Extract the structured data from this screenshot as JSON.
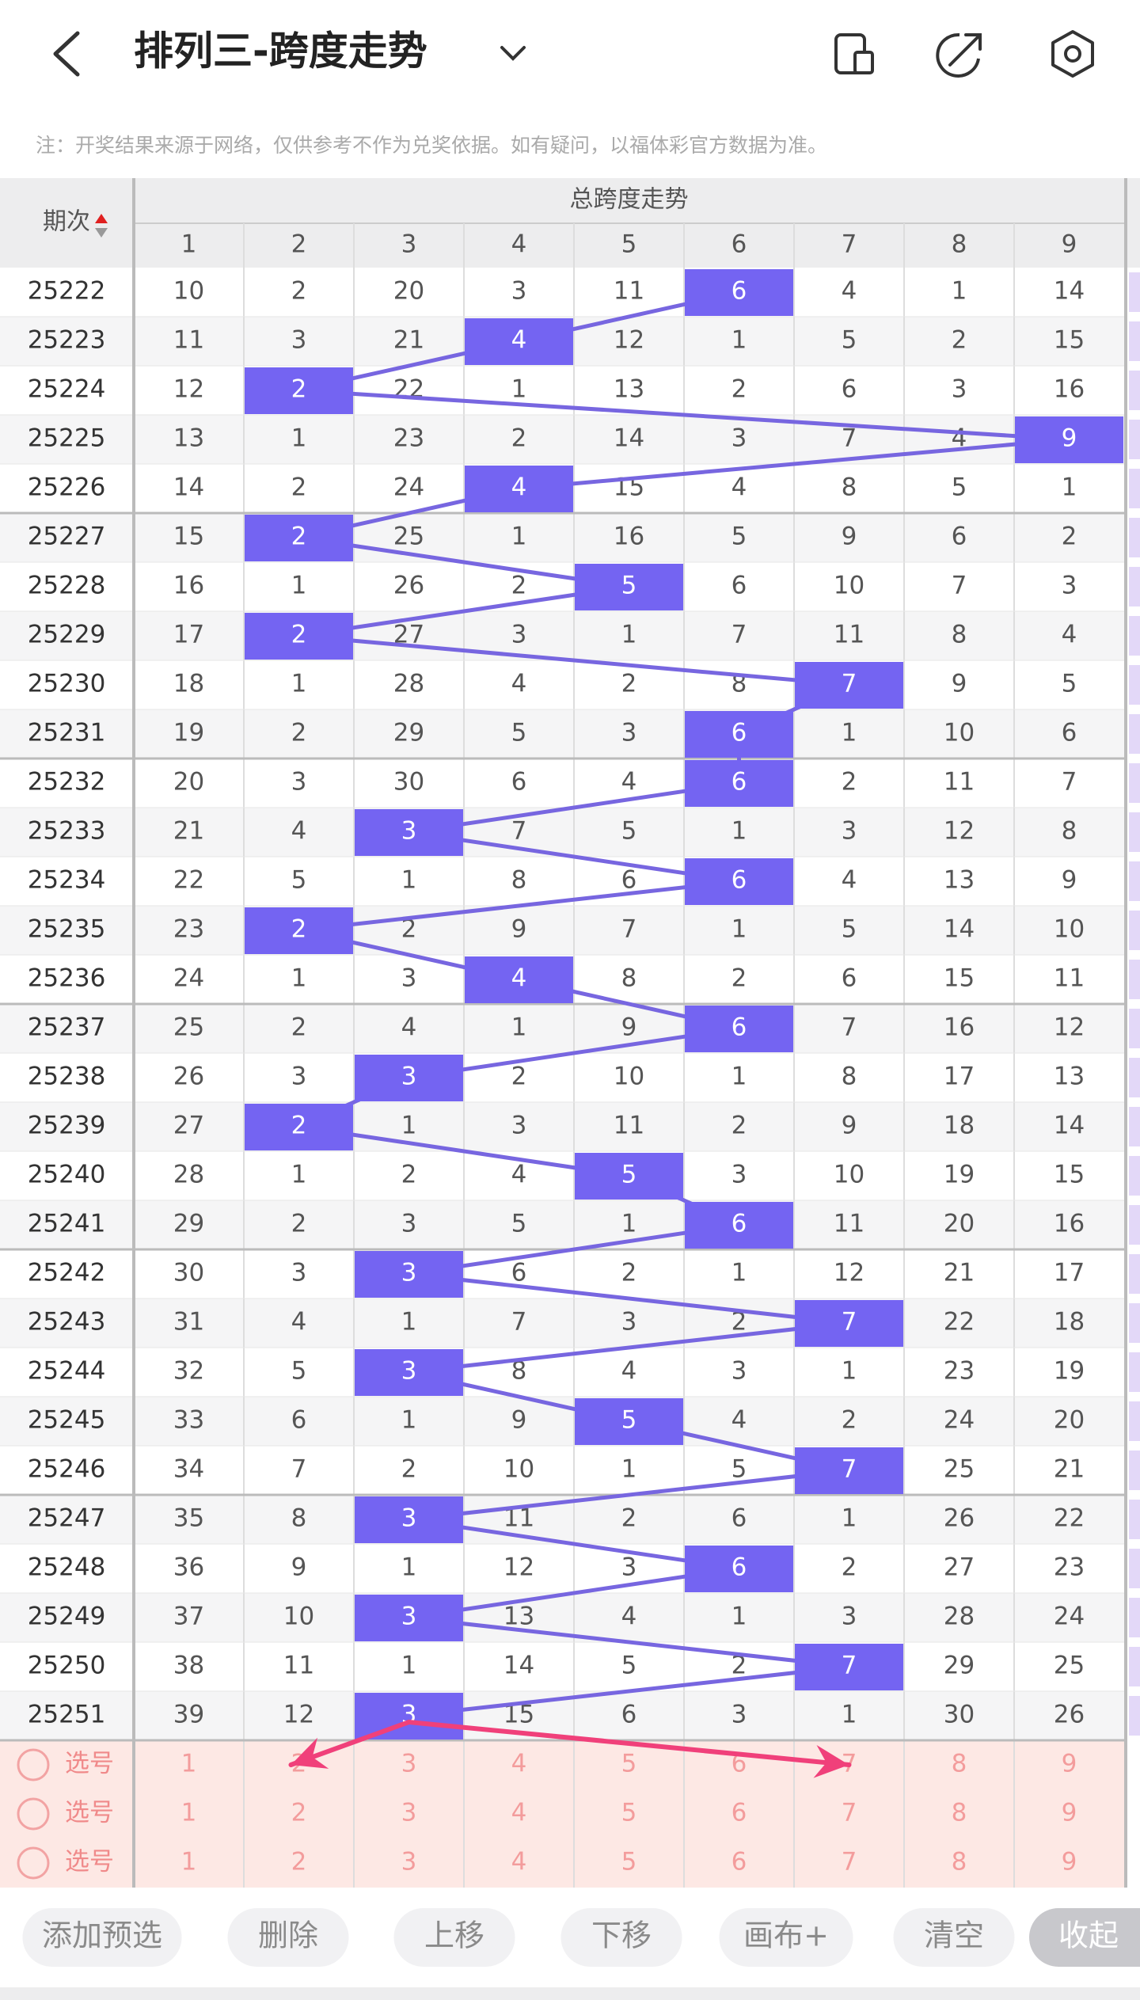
{
  "header": {
    "title": "排列三-跨度走势"
  },
  "notice": "注：开奖结果来源于网络，仅供参考不作为兑奖依据。如有疑问，以福体彩官方数据为准。",
  "table": {
    "period_header": "期次",
    "group_header": "总跨度走势",
    "columns": [
      1,
      2,
      3,
      4,
      5,
      6,
      7,
      8,
      9
    ],
    "rows": [
      {
        "period": "25222",
        "values": [
          10,
          2,
          20,
          3,
          11,
          6,
          4,
          1,
          14
        ],
        "span": 6
      },
      {
        "period": "25223",
        "values": [
          11,
          3,
          21,
          4,
          12,
          1,
          5,
          2,
          15
        ],
        "span": 4
      },
      {
        "period": "25224",
        "values": [
          12,
          2,
          22,
          1,
          13,
          2,
          6,
          3,
          16
        ],
        "span": 2
      },
      {
        "period": "25225",
        "values": [
          13,
          1,
          23,
          2,
          14,
          3,
          7,
          4,
          9
        ],
        "span": 9
      },
      {
        "period": "25226",
        "values": [
          14,
          2,
          24,
          4,
          15,
          4,
          8,
          5,
          1
        ],
        "span": 4
      },
      {
        "period": "25227",
        "values": [
          15,
          2,
          25,
          1,
          16,
          5,
          9,
          6,
          2
        ],
        "span": 2
      },
      {
        "period": "25228",
        "values": [
          16,
          1,
          26,
          2,
          5,
          6,
          10,
          7,
          3
        ],
        "span": 5
      },
      {
        "period": "25229",
        "values": [
          17,
          2,
          27,
          3,
          1,
          7,
          11,
          8,
          4
        ],
        "span": 2
      },
      {
        "period": "25230",
        "values": [
          18,
          1,
          28,
          4,
          2,
          8,
          7,
          9,
          5
        ],
        "span": 7
      },
      {
        "period": "25231",
        "values": [
          19,
          2,
          29,
          5,
          3,
          6,
          1,
          10,
          6
        ],
        "span": 6
      },
      {
        "period": "25232",
        "values": [
          20,
          3,
          30,
          6,
          4,
          6,
          2,
          11,
          7
        ],
        "span": 6
      },
      {
        "period": "25233",
        "values": [
          21,
          4,
          3,
          7,
          5,
          1,
          3,
          12,
          8
        ],
        "span": 3
      },
      {
        "period": "25234",
        "values": [
          22,
          5,
          1,
          8,
          6,
          6,
          4,
          13,
          9
        ],
        "span": 6
      },
      {
        "period": "25235",
        "values": [
          23,
          2,
          2,
          9,
          7,
          1,
          5,
          14,
          10
        ],
        "span": 2
      },
      {
        "period": "25236",
        "values": [
          24,
          1,
          3,
          4,
          8,
          2,
          6,
          15,
          11
        ],
        "span": 4
      },
      {
        "period": "25237",
        "values": [
          25,
          2,
          4,
          1,
          9,
          6,
          7,
          16,
          12
        ],
        "span": 6
      },
      {
        "period": "25238",
        "values": [
          26,
          3,
          3,
          2,
          10,
          1,
          8,
          17,
          13
        ],
        "span": 3
      },
      {
        "period": "25239",
        "values": [
          27,
          2,
          1,
          3,
          11,
          2,
          9,
          18,
          14
        ],
        "span": 2
      },
      {
        "period": "25240",
        "values": [
          28,
          1,
          2,
          4,
          5,
          3,
          10,
          19,
          15
        ],
        "span": 5
      },
      {
        "period": "25241",
        "values": [
          29,
          2,
          3,
          5,
          1,
          6,
          11,
          20,
          16
        ],
        "span": 6
      },
      {
        "period": "25242",
        "values": [
          30,
          3,
          3,
          6,
          2,
          1,
          12,
          21,
          17
        ],
        "span": 3
      },
      {
        "period": "25243",
        "values": [
          31,
          4,
          1,
          7,
          3,
          2,
          7,
          22,
          18
        ],
        "span": 7
      },
      {
        "period": "25244",
        "values": [
          32,
          5,
          3,
          8,
          4,
          3,
          1,
          23,
          19
        ],
        "span": 3
      },
      {
        "period": "25245",
        "values": [
          33,
          6,
          1,
          9,
          5,
          4,
          2,
          24,
          20
        ],
        "span": 5
      },
      {
        "period": "25246",
        "values": [
          34,
          7,
          2,
          10,
          1,
          5,
          7,
          25,
          21
        ],
        "span": 7
      },
      {
        "period": "25247",
        "values": [
          35,
          8,
          3,
          11,
          2,
          6,
          1,
          26,
          22
        ],
        "span": 3
      },
      {
        "period": "25248",
        "values": [
          36,
          9,
          1,
          12,
          3,
          6,
          2,
          27,
          23
        ],
        "span": 6
      },
      {
        "period": "25249",
        "values": [
          37,
          10,
          3,
          13,
          4,
          1,
          3,
          28,
          24
        ],
        "span": 3
      },
      {
        "period": "25250",
        "values": [
          38,
          11,
          1,
          14,
          5,
          2,
          7,
          29,
          25
        ],
        "span": 7
      },
      {
        "period": "25251",
        "values": [
          39,
          12,
          3,
          15,
          6,
          3,
          1,
          30,
          26
        ],
        "span": 3
      }
    ],
    "pick_rows": [
      {
        "label": "选号",
        "values": [
          1,
          2,
          3,
          4,
          5,
          6,
          7,
          8,
          9
        ]
      },
      {
        "label": "选号",
        "values": [
          1,
          2,
          3,
          4,
          5,
          6,
          7,
          8,
          9
        ]
      },
      {
        "label": "选号",
        "values": [
          1,
          2,
          3,
          4,
          5,
          6,
          7,
          8,
          9
        ]
      }
    ]
  },
  "toolbar": {
    "buttons": [
      "添加预选",
      "删除",
      "上移",
      "下移",
      "画布+",
      "清空",
      "收起"
    ]
  }
}
